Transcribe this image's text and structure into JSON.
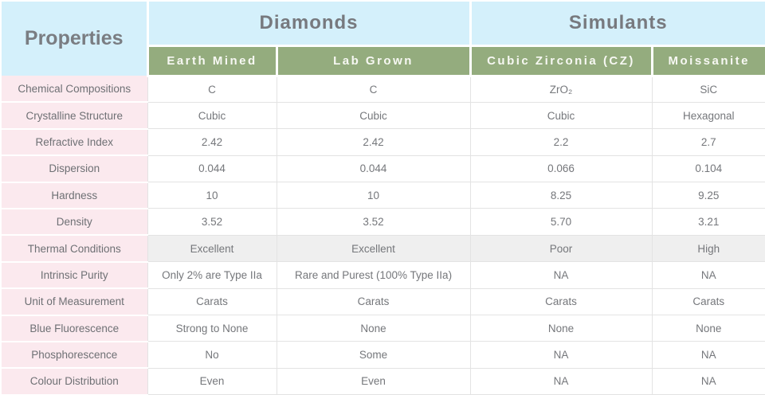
{
  "colors": {
    "header_blue": "#d4f0fb",
    "header_green": "#94ac7e",
    "row_pink": "#fbe9ee",
    "row_highlight": "#efefef",
    "grid_line": "#e3e3e3"
  },
  "table": {
    "corner_label": "Properties",
    "groups": [
      {
        "label": "Diamonds",
        "colspan": 2
      },
      {
        "label": "Simulants",
        "colspan": 2
      }
    ],
    "columns": [
      "Earth Mined",
      "Lab Grown",
      "Cubic Zirconia (CZ)",
      "Moissanite"
    ],
    "rows": [
      {
        "property": "Chemical Compositions",
        "values": [
          "C",
          "C",
          "ZrO₂",
          "SiC"
        ],
        "highlight": false
      },
      {
        "property": "Crystalline Structure",
        "values": [
          "Cubic",
          "Cubic",
          "Cubic",
          "Hexagonal"
        ],
        "highlight": false
      },
      {
        "property": "Refractive Index",
        "values": [
          "2.42",
          "2.42",
          "2.2",
          "2.7"
        ],
        "highlight": false
      },
      {
        "property": "Dispersion",
        "values": [
          "0.044",
          "0.044",
          "0.066",
          "0.104"
        ],
        "highlight": false
      },
      {
        "property": "Hardness",
        "values": [
          "10",
          "10",
          "8.25",
          "9.25"
        ],
        "highlight": false
      },
      {
        "property": "Density",
        "values": [
          "3.52",
          "3.52",
          "5.70",
          "3.21"
        ],
        "highlight": false
      },
      {
        "property": "Thermal Conditions",
        "values": [
          "Excellent",
          "Excellent",
          "Poor",
          "High"
        ],
        "highlight": true
      },
      {
        "property": "Intrinsic Purity",
        "values": [
          "Only 2% are Type IIa",
          "Rare and Purest (100% Type IIa)",
          "NA",
          "NA"
        ],
        "highlight": false
      },
      {
        "property": "Unit of Measurement",
        "values": [
          "Carats",
          "Carats",
          "Carats",
          "Carats"
        ],
        "highlight": false
      },
      {
        "property": "Blue Fluorescence",
        "values": [
          "Strong to None",
          "None",
          "None",
          "None"
        ],
        "highlight": false
      },
      {
        "property": "Phosphorescence",
        "values": [
          "No",
          "Some",
          "NA",
          "NA"
        ],
        "highlight": false
      },
      {
        "property": "Colour Distribution",
        "values": [
          "Even",
          "Even",
          "NA",
          "NA"
        ],
        "highlight": false
      }
    ]
  }
}
